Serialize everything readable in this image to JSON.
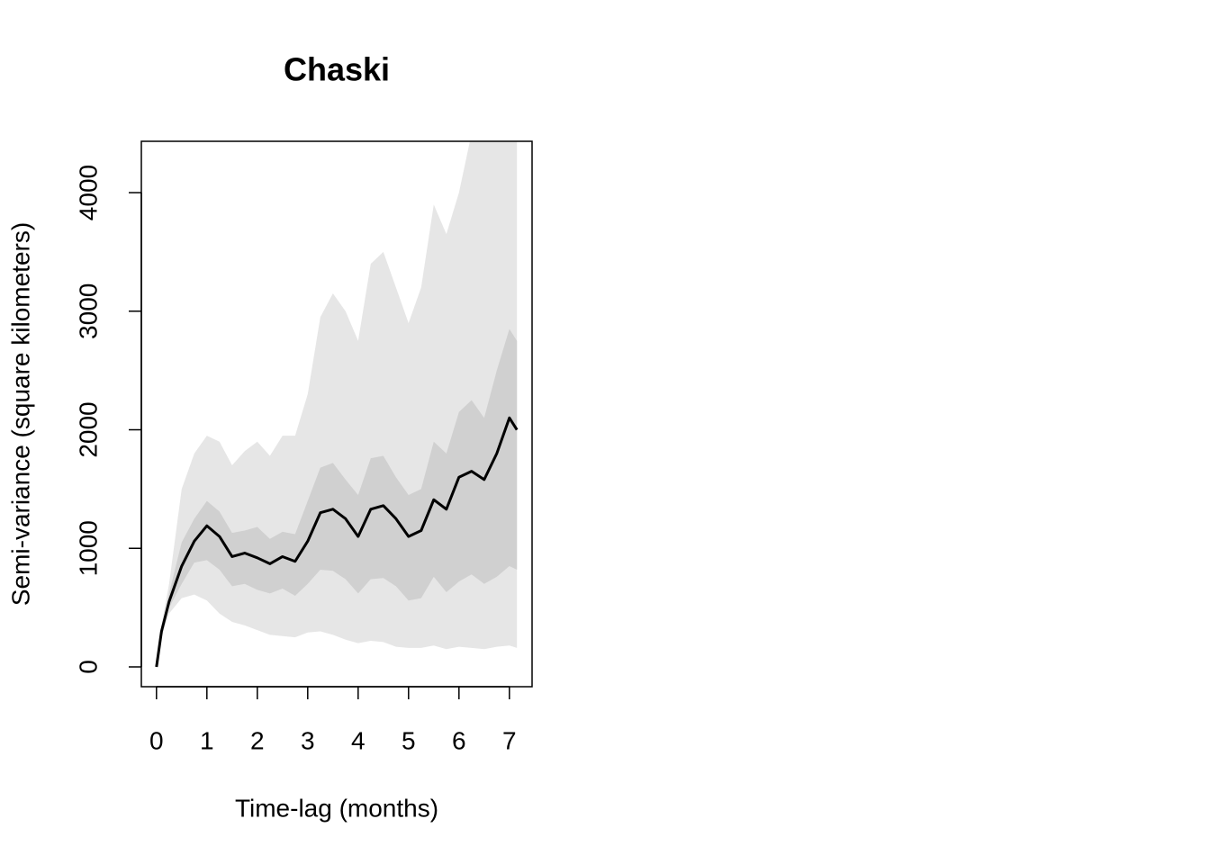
{
  "chart_data": {
    "type": "line",
    "title": "Chaski",
    "xlabel": "Time-lag (months)",
    "ylabel": "Semi-variance (square kilometers)",
    "x": [
      0,
      0.1,
      0.25,
      0.5,
      0.75,
      1,
      1.25,
      1.5,
      1.75,
      2,
      2.25,
      2.5,
      2.75,
      3,
      3.25,
      3.5,
      3.75,
      4,
      4.25,
      4.5,
      4.75,
      5,
      5.25,
      5.5,
      5.75,
      6,
      6.25,
      6.5,
      6.75,
      7,
      7.15
    ],
    "values": [
      0,
      300,
      550,
      850,
      1060,
      1190,
      1100,
      930,
      960,
      920,
      870,
      930,
      890,
      1060,
      1300,
      1330,
      1250,
      1100,
      1330,
      1360,
      1250,
      1100,
      1150,
      1410,
      1330,
      1600,
      1650,
      1580,
      1800,
      2100,
      2000
    ],
    "color": "#000000",
    "bands": [
      {
        "color": "#e6e6e6",
        "upper": [
          0,
          350,
          700,
          1500,
          1800,
          1950,
          1900,
          1700,
          1820,
          1900,
          1780,
          1950,
          1950,
          2300,
          2950,
          3150,
          3000,
          2750,
          3400,
          3500,
          3200,
          2900,
          3200,
          3900,
          3650,
          4000,
          4500,
          4800,
          5000,
          5000,
          5000
        ],
        "lower": [
          0,
          250,
          450,
          580,
          610,
          560,
          450,
          380,
          350,
          310,
          270,
          260,
          250,
          290,
          300,
          270,
          230,
          200,
          220,
          210,
          170,
          160,
          160,
          180,
          150,
          170,
          160,
          150,
          170,
          180,
          160
        ]
      },
      {
        "color": "#d0d0d0",
        "upper": [
          0,
          320,
          620,
          1050,
          1250,
          1400,
          1310,
          1130,
          1150,
          1180,
          1080,
          1140,
          1120,
          1400,
          1680,
          1720,
          1580,
          1450,
          1760,
          1780,
          1600,
          1450,
          1500,
          1900,
          1800,
          2150,
          2250,
          2100,
          2500,
          2850,
          2750
        ],
        "lower": [
          0,
          280,
          500,
          700,
          880,
          900,
          820,
          680,
          700,
          650,
          620,
          660,
          600,
          700,
          820,
          810,
          740,
          620,
          740,
          750,
          680,
          560,
          580,
          760,
          630,
          720,
          780,
          700,
          760,
          850,
          820
        ]
      }
    ],
    "xlim": [
      -0.3,
      7.45
    ],
    "ylim": [
      -167,
      4433
    ],
    "xticks": [
      0,
      1,
      2,
      3,
      4,
      5,
      6,
      7
    ],
    "yticks": [
      0,
      1000,
      2000,
      3000,
      4000
    ]
  }
}
